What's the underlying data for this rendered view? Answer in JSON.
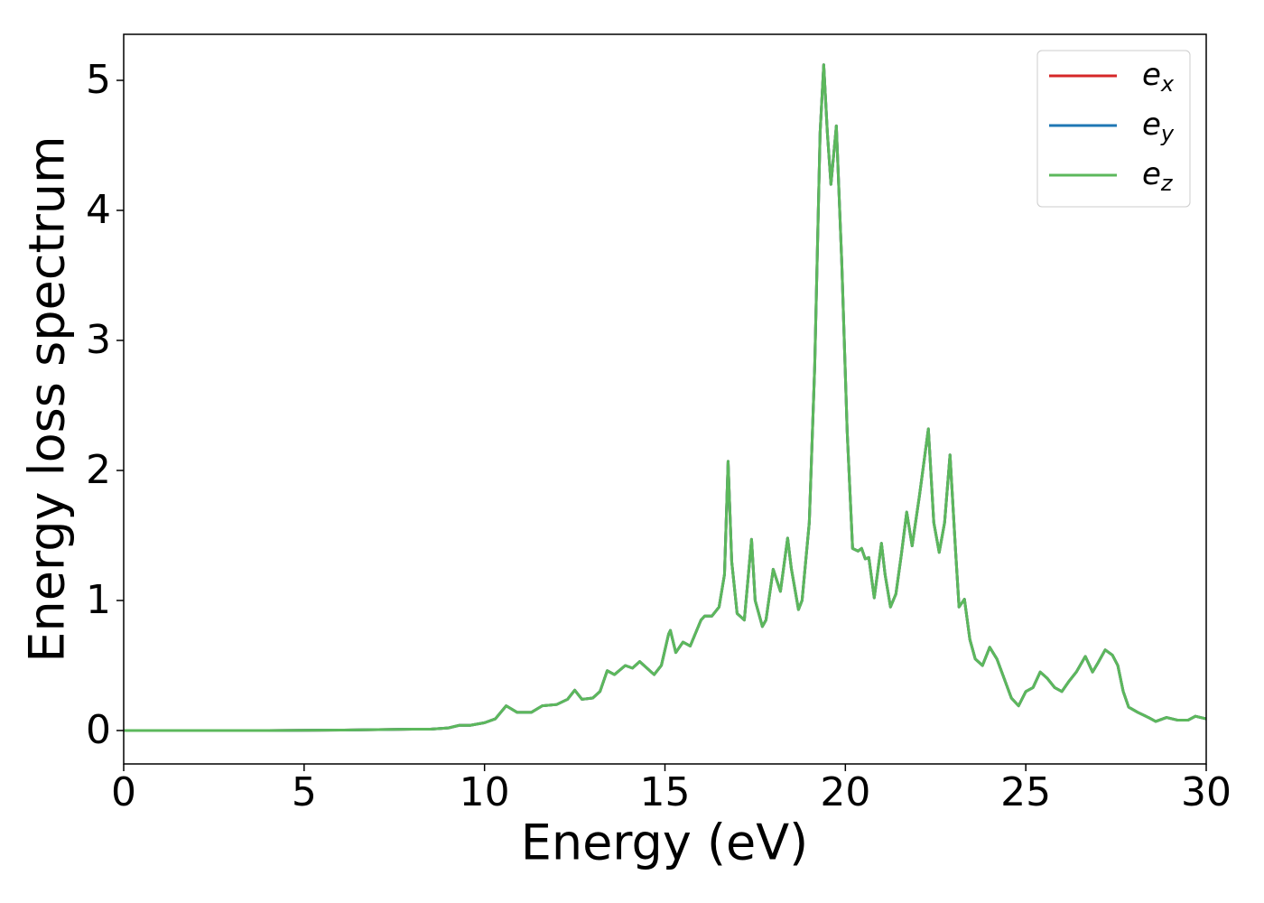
{
  "chart_data": {
    "type": "line",
    "xlabel": "Energy (eV)",
    "ylabel": "Energy loss spectrum",
    "xlim": [
      0,
      30
    ],
    "xticks": [
      0,
      5,
      10,
      15,
      20,
      25,
      30
    ],
    "ylim": [
      -0.257,
      5.354
    ],
    "yticks": [
      0,
      1,
      2,
      3,
      4,
      5
    ],
    "grid": false,
    "legend": "upper right",
    "x": [
      0,
      2,
      4,
      6,
      8,
      8.5,
      9,
      9.3,
      9.6,
      10,
      10.3,
      10.6,
      10.9,
      11.3,
      11.6,
      12,
      12.3,
      12.5,
      12.7,
      13.0,
      13.2,
      13.4,
      13.6,
      13.9,
      14.1,
      14.3,
      14.5,
      14.7,
      14.9,
      15.1,
      15.15,
      15.3,
      15.5,
      15.7,
      16.0,
      16.1,
      16.3,
      16.5,
      16.65,
      16.75,
      16.85,
      17.0,
      17.2,
      17.4,
      17.5,
      17.7,
      17.8,
      18.0,
      18.2,
      18.4,
      18.5,
      18.7,
      18.8,
      19.0,
      19.15,
      19.3,
      19.4,
      19.5,
      19.6,
      19.75,
      19.9,
      20.05,
      20.2,
      20.35,
      20.45,
      20.55,
      20.65,
      20.8,
      21.0,
      21.1,
      21.25,
      21.4,
      21.55,
      21.7,
      21.85,
      22.05,
      22.3,
      22.45,
      22.6,
      22.75,
      22.9,
      23.05,
      23.15,
      23.3,
      23.45,
      23.6,
      23.8,
      24.0,
      24.2,
      24.4,
      24.6,
      24.8,
      25.0,
      25.2,
      25.4,
      25.6,
      25.8,
      26.0,
      26.2,
      26.4,
      26.65,
      26.85,
      27.0,
      27.2,
      27.4,
      27.55,
      27.7,
      27.85,
      28.1,
      28.4,
      28.6,
      28.9,
      29.2,
      29.5,
      29.7,
      30
    ],
    "series": [
      {
        "name": "e_x",
        "color": "#d62728",
        "values": [
          0,
          0,
          0,
          0.003,
          0.01,
          0.01,
          0.02,
          0.04,
          0.04,
          0.06,
          0.09,
          0.19,
          0.14,
          0.14,
          0.19,
          0.2,
          0.24,
          0.31,
          0.24,
          0.25,
          0.3,
          0.46,
          0.43,
          0.5,
          0.48,
          0.53,
          0.48,
          0.43,
          0.5,
          0.74,
          0.77,
          0.6,
          0.68,
          0.65,
          0.85,
          0.88,
          0.88,
          0.95,
          1.2,
          2.07,
          1.3,
          0.9,
          0.85,
          1.47,
          1.0,
          0.8,
          0.85,
          1.24,
          1.07,
          1.48,
          1.25,
          0.93,
          1.0,
          1.6,
          2.8,
          4.6,
          5.12,
          4.6,
          4.2,
          4.65,
          3.6,
          2.3,
          1.4,
          1.38,
          1.4,
          1.32,
          1.33,
          1.02,
          1.44,
          1.2,
          0.95,
          1.05,
          1.35,
          1.68,
          1.42,
          1.8,
          2.32,
          1.6,
          1.37,
          1.6,
          2.12,
          1.4,
          0.95,
          1.01,
          0.7,
          0.55,
          0.5,
          0.64,
          0.55,
          0.4,
          0.25,
          0.19,
          0.3,
          0.33,
          0.45,
          0.4,
          0.33,
          0.3,
          0.38,
          0.45,
          0.57,
          0.45,
          0.52,
          0.62,
          0.58,
          0.5,
          0.3,
          0.18,
          0.14,
          0.1,
          0.07,
          0.1,
          0.08,
          0.08,
          0.11,
          0.09
        ]
      },
      {
        "name": "e_y",
        "color": "#1f77b4",
        "values": [
          0,
          0,
          0,
          0.003,
          0.01,
          0.01,
          0.02,
          0.04,
          0.04,
          0.06,
          0.09,
          0.19,
          0.14,
          0.14,
          0.19,
          0.2,
          0.24,
          0.31,
          0.24,
          0.25,
          0.3,
          0.46,
          0.43,
          0.5,
          0.48,
          0.53,
          0.48,
          0.43,
          0.5,
          0.74,
          0.77,
          0.6,
          0.68,
          0.65,
          0.85,
          0.88,
          0.88,
          0.95,
          1.2,
          2.07,
          1.3,
          0.9,
          0.85,
          1.47,
          1.0,
          0.8,
          0.85,
          1.24,
          1.07,
          1.48,
          1.25,
          0.93,
          1.0,
          1.6,
          2.8,
          4.6,
          5.12,
          4.6,
          4.2,
          4.65,
          3.6,
          2.3,
          1.4,
          1.38,
          1.4,
          1.32,
          1.33,
          1.02,
          1.44,
          1.2,
          0.95,
          1.05,
          1.35,
          1.68,
          1.42,
          1.8,
          2.32,
          1.6,
          1.37,
          1.6,
          2.12,
          1.4,
          0.95,
          1.01,
          0.7,
          0.55,
          0.5,
          0.64,
          0.55,
          0.4,
          0.25,
          0.19,
          0.3,
          0.33,
          0.45,
          0.4,
          0.33,
          0.3,
          0.38,
          0.45,
          0.57,
          0.45,
          0.52,
          0.62,
          0.58,
          0.5,
          0.3,
          0.18,
          0.14,
          0.1,
          0.07,
          0.1,
          0.08,
          0.08,
          0.11,
          0.09
        ]
      },
      {
        "name": "e_z",
        "color": "#5cb85c",
        "values": [
          0,
          0,
          0,
          0.003,
          0.01,
          0.01,
          0.02,
          0.04,
          0.04,
          0.06,
          0.09,
          0.19,
          0.14,
          0.14,
          0.19,
          0.2,
          0.24,
          0.31,
          0.24,
          0.25,
          0.3,
          0.46,
          0.43,
          0.5,
          0.48,
          0.53,
          0.48,
          0.43,
          0.5,
          0.74,
          0.77,
          0.6,
          0.68,
          0.65,
          0.85,
          0.88,
          0.88,
          0.95,
          1.2,
          2.07,
          1.3,
          0.9,
          0.85,
          1.47,
          1.0,
          0.8,
          0.85,
          1.24,
          1.07,
          1.48,
          1.25,
          0.93,
          1.0,
          1.6,
          2.8,
          4.6,
          5.12,
          4.6,
          4.2,
          4.65,
          3.6,
          2.3,
          1.4,
          1.38,
          1.4,
          1.32,
          1.33,
          1.02,
          1.44,
          1.2,
          0.95,
          1.05,
          1.35,
          1.68,
          1.42,
          1.8,
          2.32,
          1.6,
          1.37,
          1.6,
          2.12,
          1.4,
          0.95,
          1.01,
          0.7,
          0.55,
          0.5,
          0.64,
          0.55,
          0.4,
          0.25,
          0.19,
          0.3,
          0.33,
          0.45,
          0.4,
          0.33,
          0.3,
          0.38,
          0.45,
          0.57,
          0.45,
          0.52,
          0.62,
          0.58,
          0.5,
          0.3,
          0.18,
          0.14,
          0.1,
          0.07,
          0.1,
          0.08,
          0.08,
          0.11,
          0.09
        ]
      }
    ]
  }
}
